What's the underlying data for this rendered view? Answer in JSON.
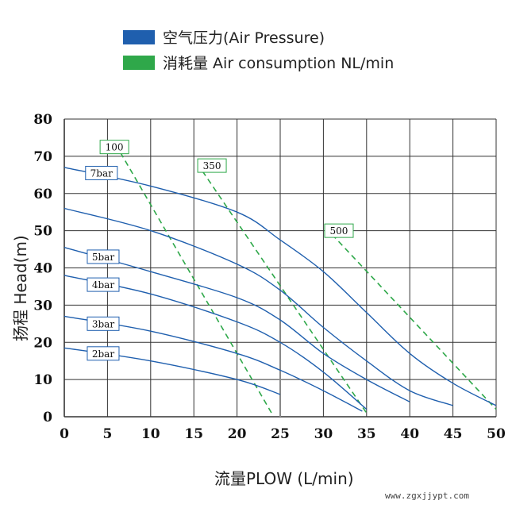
{
  "legend": {
    "pressure_color": "#1f5fae",
    "pressure_label": "空气压力(Air Pressure)",
    "consumption_color": "#2fa84a",
    "consumption_label": "消耗量 Air consumption NL/min"
  },
  "watermark": "www.zgxjjypt.com",
  "chart_data": {
    "type": "line",
    "xlabel": "流量PLOW (L/min)",
    "ylabel": "扬程 Head(m)",
    "xlim": [
      0,
      50
    ],
    "ylim": [
      0,
      80
    ],
    "xticks": [
      "0",
      "5",
      "10",
      "15",
      "20",
      "25",
      "30",
      "35",
      "40",
      "45",
      "50"
    ],
    "yticks": [
      "0",
      "10",
      "20",
      "30",
      "40",
      "50",
      "60",
      "70",
      "80"
    ],
    "grid": true,
    "pressure_curves": [
      {
        "label": "7bar",
        "points": [
          [
            0,
            67
          ],
          [
            10,
            62
          ],
          [
            20,
            55
          ],
          [
            25,
            47.5
          ],
          [
            30,
            39
          ],
          [
            35,
            28
          ],
          [
            40,
            17
          ],
          [
            45,
            9
          ],
          [
            50,
            3
          ]
        ],
        "label_at": [
          4.3,
          65.5
        ]
      },
      {
        "label": "",
        "points": [
          [
            0,
            56
          ],
          [
            10,
            50
          ],
          [
            20,
            41
          ],
          [
            25,
            34
          ],
          [
            30,
            24
          ],
          [
            35,
            15
          ],
          [
            40,
            7
          ],
          [
            45,
            3
          ]
        ],
        "label_at": null
      },
      {
        "label": "5bar",
        "points": [
          [
            0,
            45.5
          ],
          [
            10,
            39
          ],
          [
            20,
            32
          ],
          [
            25,
            26
          ],
          [
            30,
            17
          ],
          [
            35,
            10
          ],
          [
            40,
            4
          ]
        ],
        "label_at": [
          4.5,
          43
        ]
      },
      {
        "label": "4bar",
        "points": [
          [
            0,
            38
          ],
          [
            10,
            33
          ],
          [
            20,
            25.5
          ],
          [
            25,
            20
          ],
          [
            30,
            12
          ],
          [
            35,
            2
          ]
        ],
        "label_at": [
          4.5,
          35.5
        ]
      },
      {
        "label": "3bar",
        "points": [
          [
            0,
            27
          ],
          [
            10,
            23
          ],
          [
            20,
            17
          ],
          [
            25,
            12.5
          ],
          [
            30,
            7
          ],
          [
            34.5,
            1.5
          ]
        ],
        "label_at": [
          4.5,
          25
        ]
      },
      {
        "label": "2bar",
        "points": [
          [
            0,
            18.5
          ],
          [
            10,
            15
          ],
          [
            20,
            10
          ],
          [
            25,
            6
          ]
        ],
        "label_at": [
          4.5,
          17
        ]
      }
    ],
    "consumption_lines": [
      {
        "label": "100",
        "points": [
          [
            6.5,
            71
          ],
          [
            24,
            1
          ]
        ],
        "label_at": [
          5.8,
          72.5
        ]
      },
      {
        "label": "350",
        "points": [
          [
            16,
            66
          ],
          [
            35,
            1
          ]
        ],
        "label_at": [
          17.1,
          67.5
        ]
      },
      {
        "label": "500",
        "points": [
          [
            31,
            49
          ],
          [
            50,
            2
          ]
        ],
        "label_at": [
          31.8,
          50
        ]
      }
    ],
    "vertical_marker": {
      "x": 25,
      "y_top": 41
    }
  }
}
